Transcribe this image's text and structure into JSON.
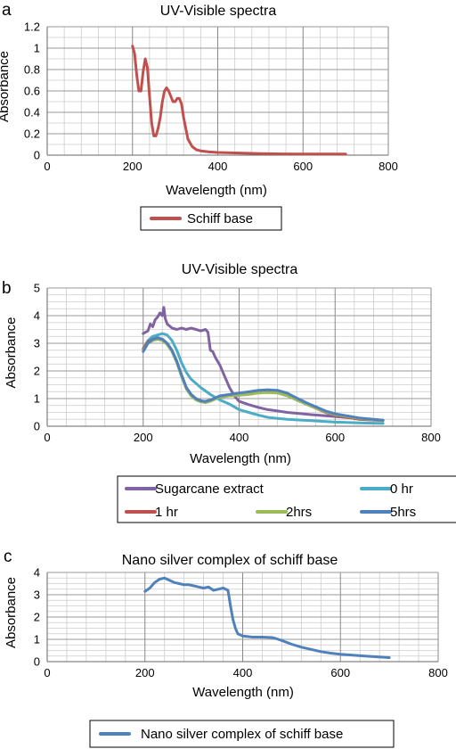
{
  "chart_data": [
    {
      "type": "line",
      "panel_letter": "a",
      "title": "UV-Visible spectra",
      "xlabel": "Wavelength (nm)",
      "ylabel": "Absorbance",
      "xlim": [
        0,
        800
      ],
      "ylim": [
        0,
        1.2
      ],
      "x_ticks": [
        0,
        200,
        400,
        600,
        800
      ],
      "y_ticks": [
        0,
        0.2,
        0.4,
        0.6,
        0.8,
        1,
        1.2
      ],
      "y_tick_labels": [
        "0",
        "0.2",
        "0.4",
        "0.6",
        "0.8",
        "1",
        "1.2"
      ],
      "grid": true,
      "legend_position": "bottom",
      "series": [
        {
          "name": "Schiff base",
          "color": "#C0504D",
          "points": [
            [
              200,
              1.02
            ],
            [
              205,
              0.95
            ],
            [
              210,
              0.75
            ],
            [
              215,
              0.6
            ],
            [
              220,
              0.6
            ],
            [
              225,
              0.78
            ],
            [
              230,
              0.9
            ],
            [
              235,
              0.82
            ],
            [
              240,
              0.55
            ],
            [
              245,
              0.3
            ],
            [
              250,
              0.18
            ],
            [
              255,
              0.18
            ],
            [
              260,
              0.25
            ],
            [
              265,
              0.35
            ],
            [
              270,
              0.5
            ],
            [
              275,
              0.6
            ],
            [
              280,
              0.63
            ],
            [
              285,
              0.6
            ],
            [
              290,
              0.55
            ],
            [
              295,
              0.5
            ],
            [
              300,
              0.5
            ],
            [
              305,
              0.53
            ],
            [
              310,
              0.53
            ],
            [
              315,
              0.48
            ],
            [
              320,
              0.35
            ],
            [
              325,
              0.25
            ],
            [
              330,
              0.15
            ],
            [
              340,
              0.08
            ],
            [
              350,
              0.05
            ],
            [
              360,
              0.04
            ],
            [
              380,
              0.03
            ],
            [
              400,
              0.025
            ],
            [
              450,
              0.02
            ],
            [
              500,
              0.015
            ],
            [
              550,
              0.012
            ],
            [
              600,
              0.01
            ],
            [
              650,
              0.01
            ],
            [
              700,
              0.01
            ]
          ]
        }
      ]
    },
    {
      "type": "line",
      "panel_letter": "b",
      "title": "UV-Visible spectra",
      "xlabel": "Wavelength (nm)",
      "ylabel": "Absorbance",
      "xlim": [
        0,
        800
      ],
      "ylim": [
        0,
        5
      ],
      "x_ticks": [
        0,
        200,
        400,
        600,
        800
      ],
      "y_ticks": [
        0,
        1,
        2,
        3,
        4,
        5
      ],
      "y_tick_labels": [
        "0",
        "1",
        "2",
        "3",
        "4",
        "5"
      ],
      "grid": true,
      "legend_position": "bottom",
      "series": [
        {
          "name": "Sugarcane extract",
          "color": "#8064A2",
          "points": [
            [
              200,
              3.35
            ],
            [
              210,
              3.45
            ],
            [
              215,
              3.7
            ],
            [
              220,
              3.6
            ],
            [
              225,
              3.85
            ],
            [
              230,
              3.95
            ],
            [
              235,
              4.1
            ],
            [
              240,
              4.0
            ],
            [
              243,
              4.3
            ],
            [
              246,
              3.9
            ],
            [
              250,
              3.7
            ],
            [
              260,
              3.55
            ],
            [
              270,
              3.5
            ],
            [
              280,
              3.55
            ],
            [
              290,
              3.5
            ],
            [
              300,
              3.55
            ],
            [
              310,
              3.5
            ],
            [
              320,
              3.45
            ],
            [
              330,
              3.5
            ],
            [
              335,
              3.4
            ],
            [
              340,
              2.75
            ],
            [
              345,
              2.7
            ],
            [
              350,
              2.5
            ],
            [
              360,
              2.2
            ],
            [
              370,
              1.8
            ],
            [
              380,
              1.4
            ],
            [
              390,
              1.1
            ],
            [
              400,
              0.9
            ],
            [
              420,
              0.78
            ],
            [
              440,
              0.68
            ],
            [
              460,
              0.6
            ],
            [
              480,
              0.55
            ],
            [
              500,
              0.5
            ],
            [
              550,
              0.42
            ],
            [
              600,
              0.35
            ],
            [
              650,
              0.27
            ],
            [
              700,
              0.22
            ]
          ]
        },
        {
          "name": "0 hr",
          "color": "#4BACC6",
          "points": [
            [
              200,
              2.8
            ],
            [
              210,
              3.1
            ],
            [
              220,
              3.25
            ],
            [
              230,
              3.3
            ],
            [
              240,
              3.35
            ],
            [
              250,
              3.3
            ],
            [
              260,
              3.1
            ],
            [
              270,
              2.75
            ],
            [
              280,
              2.3
            ],
            [
              290,
              1.95
            ],
            [
              300,
              1.7
            ],
            [
              320,
              1.4
            ],
            [
              340,
              1.15
            ],
            [
              360,
              0.95
            ],
            [
              380,
              0.8
            ],
            [
              400,
              0.6
            ],
            [
              420,
              0.5
            ],
            [
              440,
              0.4
            ],
            [
              460,
              0.32
            ],
            [
              480,
              0.28
            ],
            [
              500,
              0.25
            ],
            [
              550,
              0.2
            ],
            [
              600,
              0.15
            ],
            [
              650,
              0.12
            ],
            [
              700,
              0.1
            ]
          ]
        },
        {
          "name": "1 hr",
          "color": "#C0504D",
          "points": [
            [
              200,
              2.8
            ],
            [
              210,
              3.05
            ],
            [
              220,
              3.15
            ],
            [
              230,
              3.2
            ],
            [
              240,
              3.15
            ],
            [
              250,
              3.0
            ],
            [
              260,
              2.75
            ],
            [
              270,
              2.35
            ],
            [
              280,
              1.85
            ],
            [
              290,
              1.4
            ],
            [
              300,
              1.15
            ],
            [
              310,
              1.0
            ],
            [
              320,
              0.92
            ],
            [
              330,
              0.88
            ],
            [
              340,
              0.92
            ],
            [
              350,
              1.0
            ],
            [
              360,
              1.05
            ],
            [
              380,
              1.1
            ],
            [
              400,
              1.12
            ],
            [
              420,
              1.18
            ],
            [
              440,
              1.22
            ],
            [
              460,
              1.25
            ],
            [
              480,
              1.22
            ],
            [
              500,
              1.12
            ],
            [
              520,
              0.95
            ],
            [
              540,
              0.8
            ],
            [
              560,
              0.65
            ],
            [
              580,
              0.5
            ],
            [
              600,
              0.4
            ],
            [
              650,
              0.25
            ],
            [
              700,
              0.2
            ]
          ]
        },
        {
          "name": "2hrs",
          "color": "#9BBB59",
          "points": [
            [
              200,
              2.75
            ],
            [
              210,
              3.0
            ],
            [
              220,
              3.1
            ],
            [
              230,
              3.15
            ],
            [
              240,
              3.1
            ],
            [
              250,
              2.95
            ],
            [
              260,
              2.7
            ],
            [
              270,
              2.3
            ],
            [
              280,
              1.8
            ],
            [
              290,
              1.35
            ],
            [
              300,
              1.1
            ],
            [
              310,
              0.95
            ],
            [
              320,
              0.88
            ],
            [
              330,
              0.85
            ],
            [
              340,
              0.9
            ],
            [
              350,
              0.98
            ],
            [
              360,
              1.05
            ],
            [
              380,
              1.1
            ],
            [
              400,
              1.12
            ],
            [
              420,
              1.15
            ],
            [
              440,
              1.2
            ],
            [
              460,
              1.22
            ],
            [
              480,
              1.2
            ],
            [
              500,
              1.1
            ],
            [
              520,
              0.95
            ],
            [
              540,
              0.8
            ],
            [
              560,
              0.65
            ],
            [
              580,
              0.52
            ],
            [
              600,
              0.42
            ],
            [
              650,
              0.28
            ],
            [
              700,
              0.2
            ]
          ]
        },
        {
          "name": "5hrs",
          "color": "#4F81BD",
          "points": [
            [
              200,
              2.7
            ],
            [
              210,
              3.0
            ],
            [
              220,
              3.15
            ],
            [
              230,
              3.2
            ],
            [
              240,
              3.15
            ],
            [
              250,
              3.0
            ],
            [
              260,
              2.75
            ],
            [
              270,
              2.35
            ],
            [
              280,
              1.85
            ],
            [
              290,
              1.4
            ],
            [
              300,
              1.15
            ],
            [
              310,
              1.0
            ],
            [
              320,
              0.92
            ],
            [
              330,
              0.9
            ],
            [
              340,
              0.95
            ],
            [
              350,
              1.02
            ],
            [
              360,
              1.1
            ],
            [
              380,
              1.15
            ],
            [
              400,
              1.2
            ],
            [
              420,
              1.25
            ],
            [
              440,
              1.3
            ],
            [
              460,
              1.32
            ],
            [
              480,
              1.3
            ],
            [
              500,
              1.2
            ],
            [
              520,
              1.02
            ],
            [
              540,
              0.85
            ],
            [
              560,
              0.7
            ],
            [
              580,
              0.55
            ],
            [
              600,
              0.45
            ],
            [
              650,
              0.3
            ],
            [
              700,
              0.22
            ]
          ]
        }
      ]
    },
    {
      "type": "line",
      "panel_letter": "c",
      "title": "Nano silver complex of schiff base",
      "xlabel": "Wavelength (nm)",
      "ylabel": "Absorbance",
      "xlim": [
        0,
        800
      ],
      "ylim": [
        0,
        4
      ],
      "x_ticks": [
        0,
        200,
        400,
        600,
        800
      ],
      "y_ticks": [
        0,
        1,
        2,
        3,
        4
      ],
      "y_tick_labels": [
        "0",
        "1",
        "2",
        "3",
        "4"
      ],
      "grid": true,
      "legend_position": "bottom",
      "series": [
        {
          "name": "Nano silver complex of schiff base",
          "color": "#4F81BD",
          "points": [
            [
              200,
              3.15
            ],
            [
              210,
              3.3
            ],
            [
              220,
              3.55
            ],
            [
              230,
              3.7
            ],
            [
              240,
              3.75
            ],
            [
              250,
              3.65
            ],
            [
              260,
              3.55
            ],
            [
              270,
              3.5
            ],
            [
              280,
              3.45
            ],
            [
              290,
              3.45
            ],
            [
              300,
              3.4
            ],
            [
              310,
              3.35
            ],
            [
              320,
              3.3
            ],
            [
              330,
              3.35
            ],
            [
              340,
              3.2
            ],
            [
              350,
              3.25
            ],
            [
              360,
              3.3
            ],
            [
              370,
              3.2
            ],
            [
              375,
              2.5
            ],
            [
              380,
              1.9
            ],
            [
              385,
              1.5
            ],
            [
              390,
              1.25
            ],
            [
              400,
              1.15
            ],
            [
              420,
              1.1
            ],
            [
              440,
              1.1
            ],
            [
              460,
              1.08
            ],
            [
              470,
              1.02
            ],
            [
              480,
              0.95
            ],
            [
              500,
              0.78
            ],
            [
              520,
              0.65
            ],
            [
              540,
              0.55
            ],
            [
              560,
              0.45
            ],
            [
              580,
              0.38
            ],
            [
              600,
              0.33
            ],
            [
              650,
              0.25
            ],
            [
              700,
              0.18
            ]
          ]
        }
      ]
    }
  ]
}
